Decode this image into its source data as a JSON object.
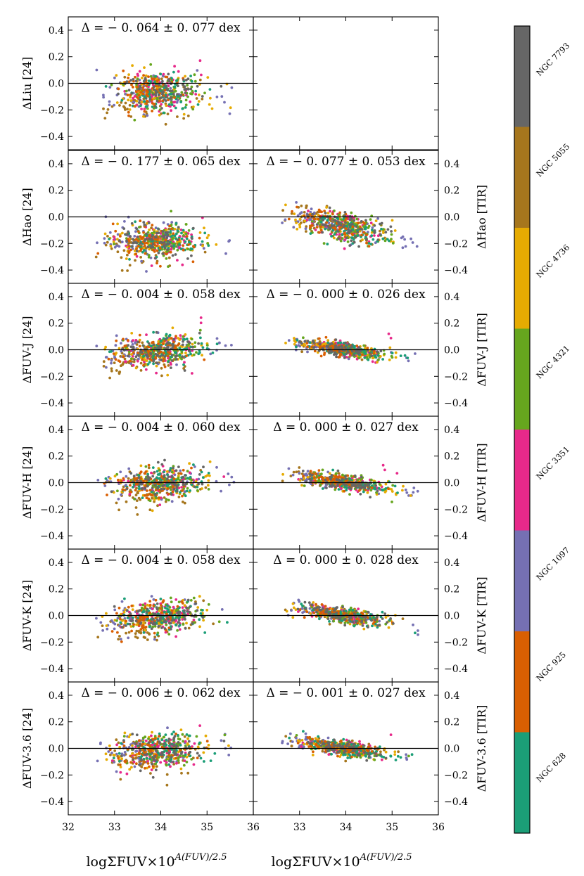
{
  "chart_data": {
    "type": "scatter",
    "title": "",
    "x_label": "logΣFUV×10^{A(FUV)/2.5}",
    "xlabel_parts": {
      "main": "logΣFUV×10",
      "sup": "A(FUV)/2.5"
    },
    "xlim": [
      32,
      36
    ],
    "x_ticks": [
      "32",
      "33",
      "34",
      "35",
      "36"
    ],
    "x_ticks_right": [
      "33",
      "34",
      "35",
      "36"
    ],
    "ylim": [
      -0.5,
      0.5
    ],
    "y_ticks": [
      "−0.4",
      "−0.2",
      "0.0",
      "0.2",
      "0.4"
    ],
    "reference_line": 0.0,
    "galaxies": [
      {
        "name": "NGC 628",
        "color": "#1b9e77",
        "x_center": 34.1,
        "x_spread": 0.45
      },
      {
        "name": "NGC 925",
        "color": "#d95f02",
        "x_center": 33.8,
        "x_spread": 0.4
      },
      {
        "name": "NGC 1097",
        "color": "#7570b3",
        "x_center": 33.6,
        "x_spread": 0.55
      },
      {
        "name": "NGC 3351",
        "color": "#e7298a",
        "x_center": 34.0,
        "x_spread": 0.4
      },
      {
        "name": "NGC 4321",
        "color": "#66a61e",
        "x_center": 34.1,
        "x_spread": 0.4
      },
      {
        "name": "NGC 4736",
        "color": "#e6ab02",
        "x_center": 33.9,
        "x_spread": 0.55
      },
      {
        "name": "NGC 5055",
        "color": "#a6761d",
        "x_center": 33.7,
        "x_spread": 0.5
      },
      {
        "name": "NGC 7793",
        "color": "#666666",
        "x_center": 34.0,
        "x_spread": 0.4
      }
    ],
    "panels": [
      {
        "row": 0,
        "col": 0,
        "ylabel": "ΔLiu [24]",
        "annotation": "Δ = − 0. 064 ± 0. 077 dex",
        "offset": -0.064,
        "scatter": 0.077,
        "slope": 0.0,
        "seed": 11
      },
      {
        "row": 0,
        "col": 1,
        "ylabel": "",
        "annotation": "",
        "empty": true
      },
      {
        "row": 1,
        "col": 0,
        "ylabel": "ΔHao [24]",
        "annotation": "Δ = − 0. 177 ± 0. 065 dex",
        "offset": -0.177,
        "scatter": 0.065,
        "slope": -0.01,
        "seed": 23
      },
      {
        "row": 1,
        "col": 1,
        "ylabel": "ΔHao [TIR]",
        "annotation": "Δ = − 0. 077 ± 0. 053 dex",
        "offset": -0.077,
        "scatter": 0.053,
        "slope": -0.07,
        "seed": 37
      },
      {
        "row": 2,
        "col": 0,
        "ylabel": "ΔFUV-J [24]",
        "annotation": "Δ = − 0. 004 ± 0. 058 dex",
        "offset": -0.004,
        "scatter": 0.058,
        "slope": 0.02,
        "seed": 41
      },
      {
        "row": 2,
        "col": 1,
        "ylabel": "ΔFUV-J [TIR]",
        "annotation": "Δ = − 0. 000 ± 0. 026 dex",
        "offset": 0.0,
        "scatter": 0.026,
        "slope": -0.05,
        "seed": 53
      },
      {
        "row": 3,
        "col": 0,
        "ylabel": "ΔFUV-H [24]",
        "annotation": "Δ = − 0. 004 ± 0. 060 dex",
        "offset": -0.004,
        "scatter": 0.06,
        "slope": 0.02,
        "seed": 67
      },
      {
        "row": 3,
        "col": 1,
        "ylabel": "ΔFUV-H [TIR]",
        "annotation": "Δ = 0. 000 ± 0. 027 dex",
        "offset": 0.0,
        "scatter": 0.027,
        "slope": -0.05,
        "seed": 71
      },
      {
        "row": 4,
        "col": 0,
        "ylabel": "ΔFUV-K [24]",
        "annotation": "Δ = − 0. 004 ± 0. 058 dex",
        "offset": -0.004,
        "scatter": 0.058,
        "slope": 0.02,
        "seed": 83
      },
      {
        "row": 4,
        "col": 1,
        "ylabel": "ΔFUV-K [TIR]",
        "annotation": "Δ = 0. 000 ± 0. 028 dex",
        "offset": 0.0,
        "scatter": 0.028,
        "slope": -0.05,
        "seed": 97
      },
      {
        "row": 5,
        "col": 0,
        "ylabel": "ΔFUV-3.6 [24]",
        "annotation": "Δ = − 0. 006 ± 0. 062 dex",
        "offset": -0.006,
        "scatter": 0.062,
        "slope": 0.02,
        "seed": 101
      },
      {
        "row": 5,
        "col": 1,
        "ylabel": "ΔFUV-3.6 [TIR]",
        "annotation": "Δ = − 0. 001 ± 0. 027 dex",
        "offset": -0.001,
        "scatter": 0.027,
        "slope": -0.05,
        "seed": 113
      }
    ],
    "colorbar_order_top_to_bottom": [
      "NGC 7793",
      "NGC 5055",
      "NGC 4736",
      "NGC 4321",
      "NGC 3351",
      "NGC 1097",
      "NGC 925",
      "NGC 628"
    ]
  }
}
